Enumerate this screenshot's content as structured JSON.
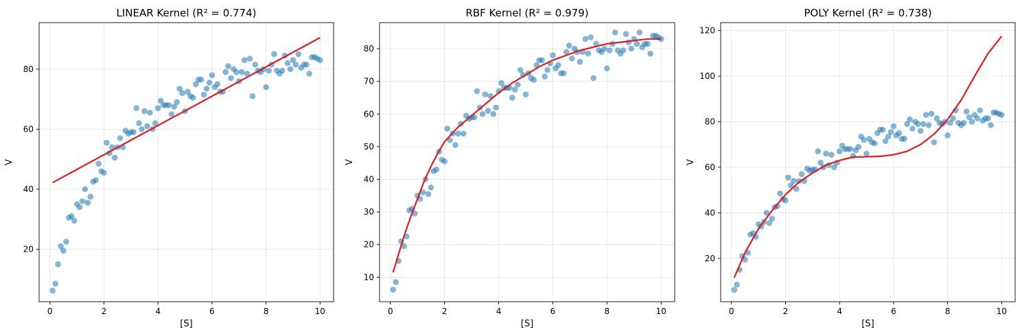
{
  "colors": {
    "points": "#1f77b4",
    "fit": "#e31a1c"
  },
  "chart_data": [
    {
      "type": "scatter",
      "title": "LINEAR Kernel (R² = 0.774)",
      "xlabel": "[S]",
      "ylabel": "V",
      "xlim": [
        -0.4,
        10.5
      ],
      "ylim": [
        2.5,
        95.5
      ],
      "xticks": [
        0,
        2,
        4,
        6,
        8,
        10
      ],
      "yticks": [
        20,
        40,
        60,
        80
      ],
      "grid": true,
      "fit": {
        "model": "linear",
        "x": [
          0.1,
          10.0
        ],
        "y": [
          42.2,
          90.5
        ]
      },
      "points": [
        [
          0.1,
          6.2
        ],
        [
          0.2,
          8.5
        ],
        [
          0.3,
          15
        ],
        [
          0.4,
          21
        ],
        [
          0.5,
          19.5
        ],
        [
          0.6,
          22.5
        ],
        [
          0.7,
          30.5
        ],
        [
          0.8,
          31
        ],
        [
          0.9,
          29.5
        ],
        [
          1.0,
          35
        ],
        [
          1.1,
          34
        ],
        [
          1.2,
          36
        ],
        [
          1.3,
          40
        ],
        [
          1.4,
          35.5
        ],
        [
          1.5,
          37.5
        ],
        [
          1.6,
          42.5
        ],
        [
          1.7,
          43
        ],
        [
          1.8,
          48.5
        ],
        [
          1.9,
          46
        ],
        [
          2.0,
          45.5
        ],
        [
          2.1,
          55.5
        ],
        [
          2.2,
          52
        ],
        [
          2.3,
          54
        ],
        [
          2.4,
          50.5
        ],
        [
          2.5,
          54
        ],
        [
          2.6,
          57
        ],
        [
          2.7,
          54
        ],
        [
          2.8,
          59.5
        ],
        [
          2.9,
          58.5
        ],
        [
          3.0,
          59
        ],
        [
          3.1,
          59
        ],
        [
          3.2,
          67
        ],
        [
          3.3,
          62
        ],
        [
          3.4,
          60
        ],
        [
          3.5,
          66
        ],
        [
          3.6,
          61
        ],
        [
          3.7,
          65.5
        ],
        [
          3.8,
          60
        ],
        [
          3.9,
          62
        ],
        [
          4.0,
          67
        ],
        [
          4.1,
          69.5
        ],
        [
          4.2,
          68
        ],
        [
          4.3,
          68
        ],
        [
          4.4,
          68
        ],
        [
          4.5,
          65
        ],
        [
          4.6,
          67.5
        ],
        [
          4.7,
          69
        ],
        [
          4.8,
          73.5
        ],
        [
          4.9,
          72
        ],
        [
          5.0,
          66
        ],
        [
          5.1,
          72.5
        ],
        [
          5.2,
          71
        ],
        [
          5.3,
          70.5
        ],
        [
          5.4,
          75
        ],
        [
          5.5,
          76.5
        ],
        [
          5.6,
          76.5
        ],
        [
          5.7,
          71.5
        ],
        [
          5.8,
          73.5
        ],
        [
          5.9,
          75.5
        ],
        [
          6.0,
          78
        ],
        [
          6.1,
          74
        ],
        [
          6.2,
          75
        ],
        [
          6.3,
          72.5
        ],
        [
          6.4,
          72.5
        ],
        [
          6.5,
          79
        ],
        [
          6.6,
          81
        ],
        [
          6.7,
          77
        ],
        [
          6.8,
          80
        ],
        [
          6.9,
          79
        ],
        [
          7.0,
          76
        ],
        [
          7.1,
          79
        ],
        [
          7.2,
          83
        ],
        [
          7.3,
          78.5
        ],
        [
          7.4,
          83.5
        ],
        [
          7.5,
          71
        ],
        [
          7.6,
          81.5
        ],
        [
          7.7,
          79.5
        ],
        [
          7.8,
          79
        ],
        [
          7.9,
          80
        ],
        [
          8.0,
          74
        ],
        [
          8.1,
          79.5
        ],
        [
          8.2,
          81.5
        ],
        [
          8.3,
          85
        ],
        [
          8.4,
          79.5
        ],
        [
          8.5,
          78.5
        ],
        [
          8.6,
          79.5
        ],
        [
          8.7,
          84.5
        ],
        [
          8.8,
          82
        ],
        [
          8.9,
          80
        ],
        [
          9.0,
          83
        ],
        [
          9.1,
          81.5
        ],
        [
          9.2,
          85
        ],
        [
          9.3,
          80.5
        ],
        [
          9.4,
          81.5
        ],
        [
          9.5,
          81.5
        ],
        [
          9.6,
          78.5
        ],
        [
          9.7,
          84
        ],
        [
          9.8,
          84
        ],
        [
          9.9,
          83.5
        ],
        [
          10.0,
          83
        ]
      ]
    },
    {
      "type": "scatter",
      "title": "RBF Kernel (R² = 0.979)",
      "xlabel": "[S]",
      "ylabel": "V",
      "xlim": [
        -0.4,
        10.5
      ],
      "ylim": [
        2.5,
        88
      ],
      "xticks": [
        0,
        2,
        4,
        6,
        8,
        10
      ],
      "yticks": [
        10,
        20,
        30,
        40,
        50,
        60,
        70,
        80
      ],
      "grid": true,
      "fit": {
        "model": "rbf",
        "x": [
          0.1,
          0.3,
          0.5,
          0.75,
          1.0,
          1.25,
          1.5,
          1.75,
          2.0,
          2.5,
          3.0,
          3.5,
          4.0,
          4.5,
          5.0,
          5.5,
          6.0,
          6.5,
          7.0,
          7.5,
          8.0,
          8.5,
          9.0,
          9.5,
          10.0
        ],
        "y": [
          11.5,
          17,
          22.5,
          28.5,
          34,
          39.5,
          44,
          48,
          51.5,
          56,
          59.5,
          63,
          66.5,
          69.5,
          72,
          74.5,
          76.5,
          78,
          79.5,
          80.5,
          81.5,
          82,
          82.5,
          83,
          83
        ]
      },
      "points": [
        [
          0.1,
          6.2
        ],
        [
          0.2,
          8.5
        ],
        [
          0.3,
          15
        ],
        [
          0.4,
          21
        ],
        [
          0.5,
          19.5
        ],
        [
          0.6,
          22.5
        ],
        [
          0.7,
          30.5
        ],
        [
          0.8,
          31
        ],
        [
          0.9,
          29.5
        ],
        [
          1.0,
          35
        ],
        [
          1.1,
          34
        ],
        [
          1.2,
          36
        ],
        [
          1.3,
          40
        ],
        [
          1.4,
          35.5
        ],
        [
          1.5,
          37.5
        ],
        [
          1.6,
          42.5
        ],
        [
          1.7,
          43
        ],
        [
          1.8,
          48.5
        ],
        [
          1.9,
          46
        ],
        [
          2.0,
          45.5
        ],
        [
          2.1,
          55.5
        ],
        [
          2.2,
          52
        ],
        [
          2.3,
          54
        ],
        [
          2.4,
          50.5
        ],
        [
          2.5,
          54
        ],
        [
          2.6,
          57
        ],
        [
          2.7,
          54
        ],
        [
          2.8,
          59.5
        ],
        [
          2.9,
          58.5
        ],
        [
          3.0,
          59
        ],
        [
          3.1,
          59
        ],
        [
          3.2,
          67
        ],
        [
          3.3,
          62
        ],
        [
          3.4,
          60
        ],
        [
          3.5,
          66
        ],
        [
          3.6,
          61
        ],
        [
          3.7,
          65.5
        ],
        [
          3.8,
          60
        ],
        [
          3.9,
          62
        ],
        [
          4.0,
          67
        ],
        [
          4.1,
          69.5
        ],
        [
          4.2,
          68
        ],
        [
          4.3,
          68
        ],
        [
          4.4,
          68
        ],
        [
          4.5,
          65
        ],
        [
          4.6,
          67.5
        ],
        [
          4.7,
          69
        ],
        [
          4.8,
          73.5
        ],
        [
          4.9,
          72
        ],
        [
          5.0,
          66
        ],
        [
          5.1,
          72.5
        ],
        [
          5.2,
          71
        ],
        [
          5.3,
          70.5
        ],
        [
          5.4,
          75
        ],
        [
          5.5,
          76.5
        ],
        [
          5.6,
          76.5
        ],
        [
          5.7,
          71.5
        ],
        [
          5.8,
          73.5
        ],
        [
          5.9,
          75.5
        ],
        [
          6.0,
          78
        ],
        [
          6.1,
          74
        ],
        [
          6.2,
          75
        ],
        [
          6.3,
          72.5
        ],
        [
          6.4,
          72.5
        ],
        [
          6.5,
          79
        ],
        [
          6.6,
          81
        ],
        [
          6.7,
          77
        ],
        [
          6.8,
          80
        ],
        [
          6.9,
          79
        ],
        [
          7.0,
          76
        ],
        [
          7.1,
          79
        ],
        [
          7.2,
          83
        ],
        [
          7.3,
          78.5
        ],
        [
          7.4,
          83.5
        ],
        [
          7.5,
          71
        ],
        [
          7.6,
          81.5
        ],
        [
          7.7,
          79.5
        ],
        [
          7.8,
          79
        ],
        [
          7.9,
          80
        ],
        [
          8.0,
          74
        ],
        [
          8.1,
          79.5
        ],
        [
          8.2,
          81.5
        ],
        [
          8.3,
          85
        ],
        [
          8.4,
          79.5
        ],
        [
          8.5,
          78.5
        ],
        [
          8.6,
          79.5
        ],
        [
          8.7,
          84.5
        ],
        [
          8.8,
          82
        ],
        [
          8.9,
          80
        ],
        [
          9.0,
          83
        ],
        [
          9.1,
          81.5
        ],
        [
          9.2,
          85
        ],
        [
          9.3,
          80.5
        ],
        [
          9.4,
          81.5
        ],
        [
          9.5,
          81.5
        ],
        [
          9.6,
          78.5
        ],
        [
          9.7,
          84
        ],
        [
          9.8,
          84
        ],
        [
          9.9,
          83.5
        ],
        [
          10.0,
          83
        ]
      ]
    },
    {
      "type": "scatter",
      "title": "POLY Kernel (R² = 0.738)",
      "xlabel": "[S]",
      "ylabel": "V",
      "xlim": [
        -0.4,
        10.5
      ],
      "ylim": [
        1,
        123.5
      ],
      "xticks": [
        0,
        2,
        4,
        6,
        8,
        10
      ],
      "yticks": [
        20,
        40,
        60,
        80,
        100,
        120
      ],
      "grid": true,
      "fit": {
        "model": "poly",
        "x": [
          0.1,
          0.5,
          1.0,
          1.5,
          2.0,
          2.5,
          3.0,
          3.5,
          4.0,
          4.5,
          5.0,
          5.5,
          6.0,
          6.5,
          7.0,
          7.5,
          8.0,
          8.5,
          9.0,
          9.5,
          10.0
        ],
        "y": [
          11.5,
          22.5,
          33,
          41,
          48,
          53.5,
          57.5,
          61,
          63,
          64.5,
          64.6,
          64.8,
          65.5,
          67,
          70,
          74.5,
          81,
          89.5,
          100,
          110,
          117.5
        ]
      },
      "points": [
        [
          0.1,
          6.2
        ],
        [
          0.2,
          8.5
        ],
        [
          0.3,
          15
        ],
        [
          0.4,
          21
        ],
        [
          0.5,
          19.5
        ],
        [
          0.6,
          22.5
        ],
        [
          0.7,
          30.5
        ],
        [
          0.8,
          31
        ],
        [
          0.9,
          29.5
        ],
        [
          1.0,
          35
        ],
        [
          1.1,
          34
        ],
        [
          1.2,
          36
        ],
        [
          1.3,
          40
        ],
        [
          1.4,
          35.5
        ],
        [
          1.5,
          37.5
        ],
        [
          1.6,
          42.5
        ],
        [
          1.7,
          43
        ],
        [
          1.8,
          48.5
        ],
        [
          1.9,
          46
        ],
        [
          2.0,
          45.5
        ],
        [
          2.1,
          55.5
        ],
        [
          2.2,
          52
        ],
        [
          2.3,
          54
        ],
        [
          2.4,
          50.5
        ],
        [
          2.5,
          54
        ],
        [
          2.6,
          57
        ],
        [
          2.7,
          54
        ],
        [
          2.8,
          59.5
        ],
        [
          2.9,
          58.5
        ],
        [
          3.0,
          59
        ],
        [
          3.1,
          59
        ],
        [
          3.2,
          67
        ],
        [
          3.3,
          62
        ],
        [
          3.4,
          60
        ],
        [
          3.5,
          66
        ],
        [
          3.6,
          61
        ],
        [
          3.7,
          65.5
        ],
        [
          3.8,
          60
        ],
        [
          3.9,
          62
        ],
        [
          4.0,
          67
        ],
        [
          4.1,
          69.5
        ],
        [
          4.2,
          68
        ],
        [
          4.3,
          68
        ],
        [
          4.4,
          68
        ],
        [
          4.5,
          65
        ],
        [
          4.6,
          67.5
        ],
        [
          4.7,
          69
        ],
        [
          4.8,
          73.5
        ],
        [
          4.9,
          72
        ],
        [
          5.0,
          66
        ],
        [
          5.1,
          72.5
        ],
        [
          5.2,
          71
        ],
        [
          5.3,
          70.5
        ],
        [
          5.4,
          75
        ],
        [
          5.5,
          76.5
        ],
        [
          5.6,
          76.5
        ],
        [
          5.7,
          71.5
        ],
        [
          5.8,
          73.5
        ],
        [
          5.9,
          75.5
        ],
        [
          6.0,
          78
        ],
        [
          6.1,
          74
        ],
        [
          6.2,
          75
        ],
        [
          6.3,
          72.5
        ],
        [
          6.4,
          72.5
        ],
        [
          6.5,
          79
        ],
        [
          6.6,
          81
        ],
        [
          6.7,
          77
        ],
        [
          6.8,
          80
        ],
        [
          6.9,
          79
        ],
        [
          7.0,
          76
        ],
        [
          7.1,
          79
        ],
        [
          7.2,
          83
        ],
        [
          7.3,
          78.5
        ],
        [
          7.4,
          83.5
        ],
        [
          7.5,
          71
        ],
        [
          7.6,
          81.5
        ],
        [
          7.7,
          79.5
        ],
        [
          7.8,
          79
        ],
        [
          7.9,
          80
        ],
        [
          8.0,
          74
        ],
        [
          8.1,
          79.5
        ],
        [
          8.2,
          81.5
        ],
        [
          8.3,
          85
        ],
        [
          8.4,
          79.5
        ],
        [
          8.5,
          78.5
        ],
        [
          8.6,
          79.5
        ],
        [
          8.7,
          84.5
        ],
        [
          8.8,
          82
        ],
        [
          8.9,
          80
        ],
        [
          9.0,
          83
        ],
        [
          9.1,
          81.5
        ],
        [
          9.2,
          85
        ],
        [
          9.3,
          80.5
        ],
        [
          9.4,
          81.5
        ],
        [
          9.5,
          81.5
        ],
        [
          9.6,
          78.5
        ],
        [
          9.7,
          84
        ],
        [
          9.8,
          84
        ],
        [
          9.9,
          83.5
        ],
        [
          10.0,
          83
        ]
      ]
    }
  ]
}
